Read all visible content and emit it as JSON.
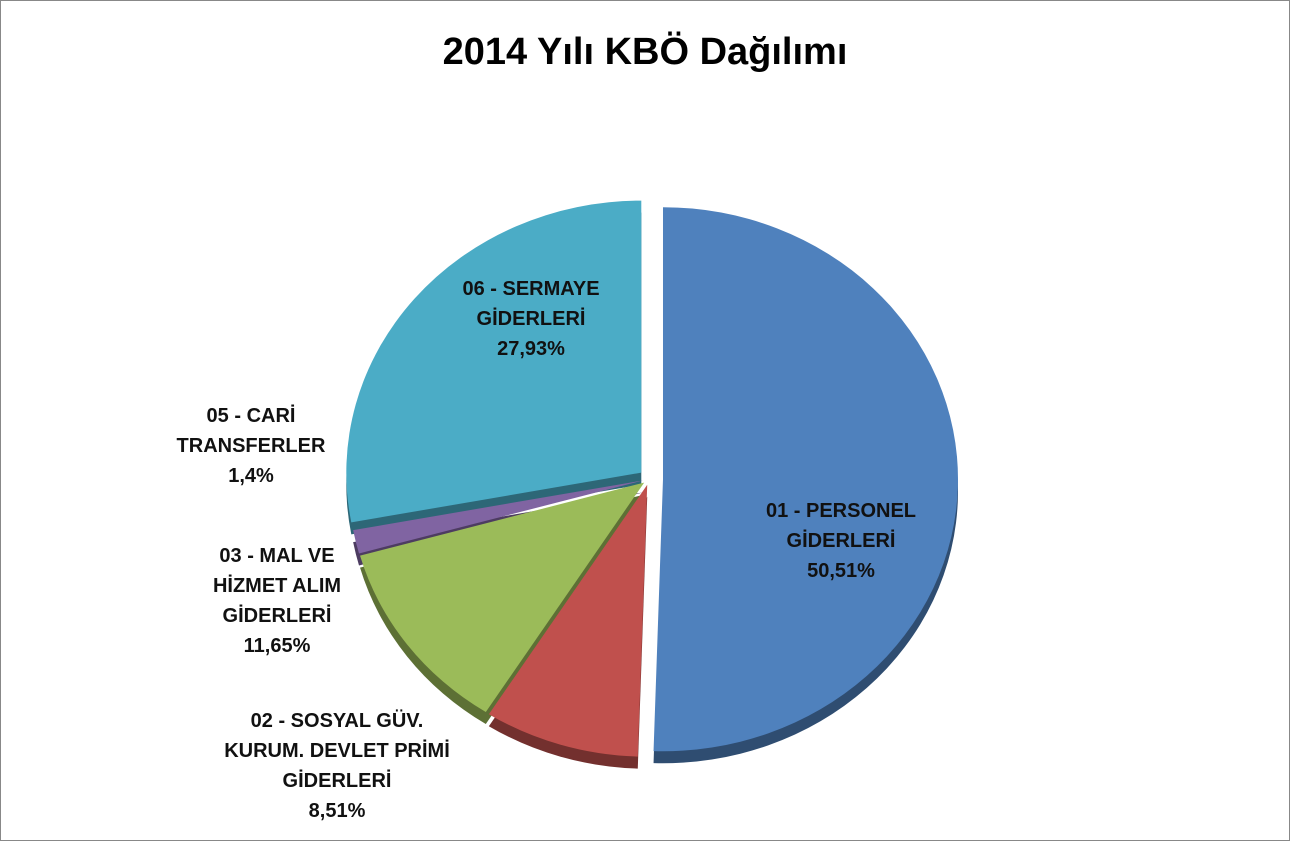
{
  "chart_data": {
    "type": "pie",
    "title": "2014 Yılı KBÖ Dağılımı",
    "categories": [
      "01 - PERSONEL GİDERLERİ",
      "02 - SOSYAL GÜV. KURUM. DEVLET PRİMİ GİDERLERİ",
      "03 - MAL VE HİZMET ALIM GİDERLERİ",
      "05 - CARİ TRANSFERLER",
      "06 - SERMAYE GİDERLERİ"
    ],
    "values": [
      50.51,
      8.51,
      11.65,
      1.4,
      27.93
    ],
    "value_labels": [
      "50,51%",
      "8,51%",
      "11,65%",
      "1,4%",
      "27,93%"
    ],
    "colors": [
      "#4f81bd",
      "#c0504d",
      "#9bbb59",
      "#8064a2",
      "#4bacc6"
    ]
  }
}
